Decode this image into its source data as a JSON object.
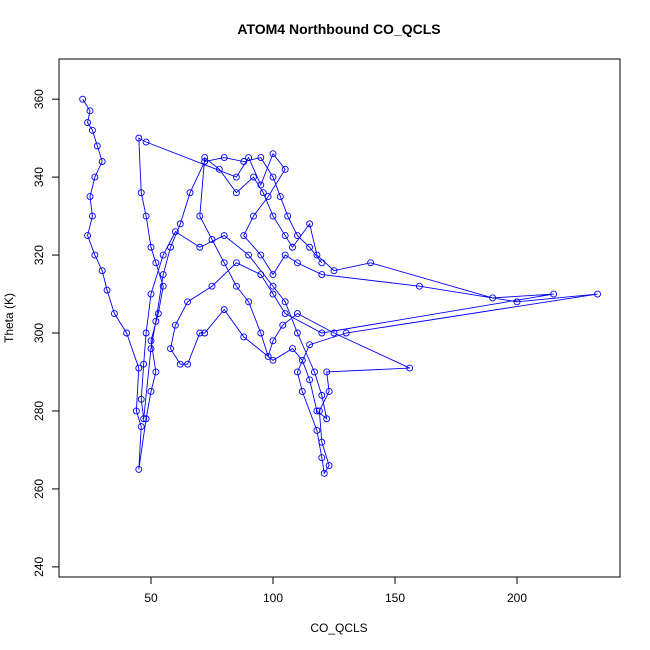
{
  "chart_data": {
    "type": "scatter",
    "title": "ATOM4 Northbound CO_QCLS",
    "x_label": "CO_QCLS",
    "y_label": "Theta (K)",
    "color": "#0000ff",
    "lines": true,
    "xlim": [
      12.3,
      242.2
    ],
    "ylim": [
      237.4,
      370.3
    ],
    "xticks": [
      50,
      100,
      150,
      200
    ],
    "yticks": [
      240,
      260,
      280,
      300,
      320,
      340,
      360
    ],
    "x": [
      22,
      25,
      24,
      26,
      28,
      30,
      27,
      25,
      26,
      24,
      27,
      30,
      32,
      35,
      40,
      45,
      44,
      46,
      45,
      48,
      50,
      52,
      50,
      53,
      55,
      52,
      50,
      48,
      46,
      45,
      48,
      85,
      90,
      95,
      100,
      105,
      98,
      92,
      88,
      95,
      100,
      105,
      110,
      120,
      160,
      200,
      233,
      130,
      115,
      110,
      112,
      118,
      120,
      121,
      123,
      120,
      119,
      123,
      122,
      156,
      125,
      110,
      104,
      100,
      98,
      95,
      90,
      85,
      80,
      75,
      70,
      72,
      78,
      85,
      92,
      96,
      100,
      105,
      108,
      115,
      118,
      125,
      140,
      190,
      215,
      120,
      105,
      100,
      95,
      85,
      75,
      65,
      60,
      58,
      62,
      65,
      70,
      72,
      80,
      88,
      100,
      108,
      112,
      115,
      118,
      122,
      120,
      117,
      110,
      105,
      100,
      90,
      80,
      70,
      60,
      55,
      50,
      48,
      47,
      46,
      47,
      50,
      52,
      55,
      58,
      62,
      66,
      72,
      80,
      88,
      95,
      100,
      103,
      106,
      110,
      115,
      120
    ],
    "values": [
      360,
      357,
      354,
      352,
      348,
      344,
      340,
      335,
      330,
      325,
      320,
      316,
      311,
      305,
      300,
      291,
      280,
      276,
      265,
      278,
      285,
      290,
      298,
      305,
      312,
      318,
      322,
      330,
      336,
      350,
      349,
      340,
      345,
      338,
      346,
      342,
      335,
      330,
      325,
      320,
      315,
      320,
      318,
      315,
      312,
      308,
      310,
      300,
      297,
      290,
      285,
      275,
      268,
      264,
      266,
      272,
      280,
      285,
      290,
      291,
      300,
      305,
      302,
      298,
      294,
      300,
      308,
      312,
      318,
      324,
      330,
      345,
      342,
      336,
      340,
      336,
      330,
      325,
      322,
      328,
      320,
      316,
      318,
      309,
      310,
      300,
      305,
      310,
      315,
      318,
      312,
      308,
      302,
      296,
      292,
      292,
      300,
      300,
      306,
      299,
      293,
      296,
      293,
      288,
      280,
      278,
      284,
      290,
      300,
      308,
      312,
      320,
      325,
      322,
      326,
      320,
      310,
      300,
      292,
      283,
      278,
      296,
      303,
      315,
      322,
      328,
      336,
      344,
      345,
      344,
      345,
      340,
      335,
      330,
      325,
      322,
      318
    ]
  }
}
